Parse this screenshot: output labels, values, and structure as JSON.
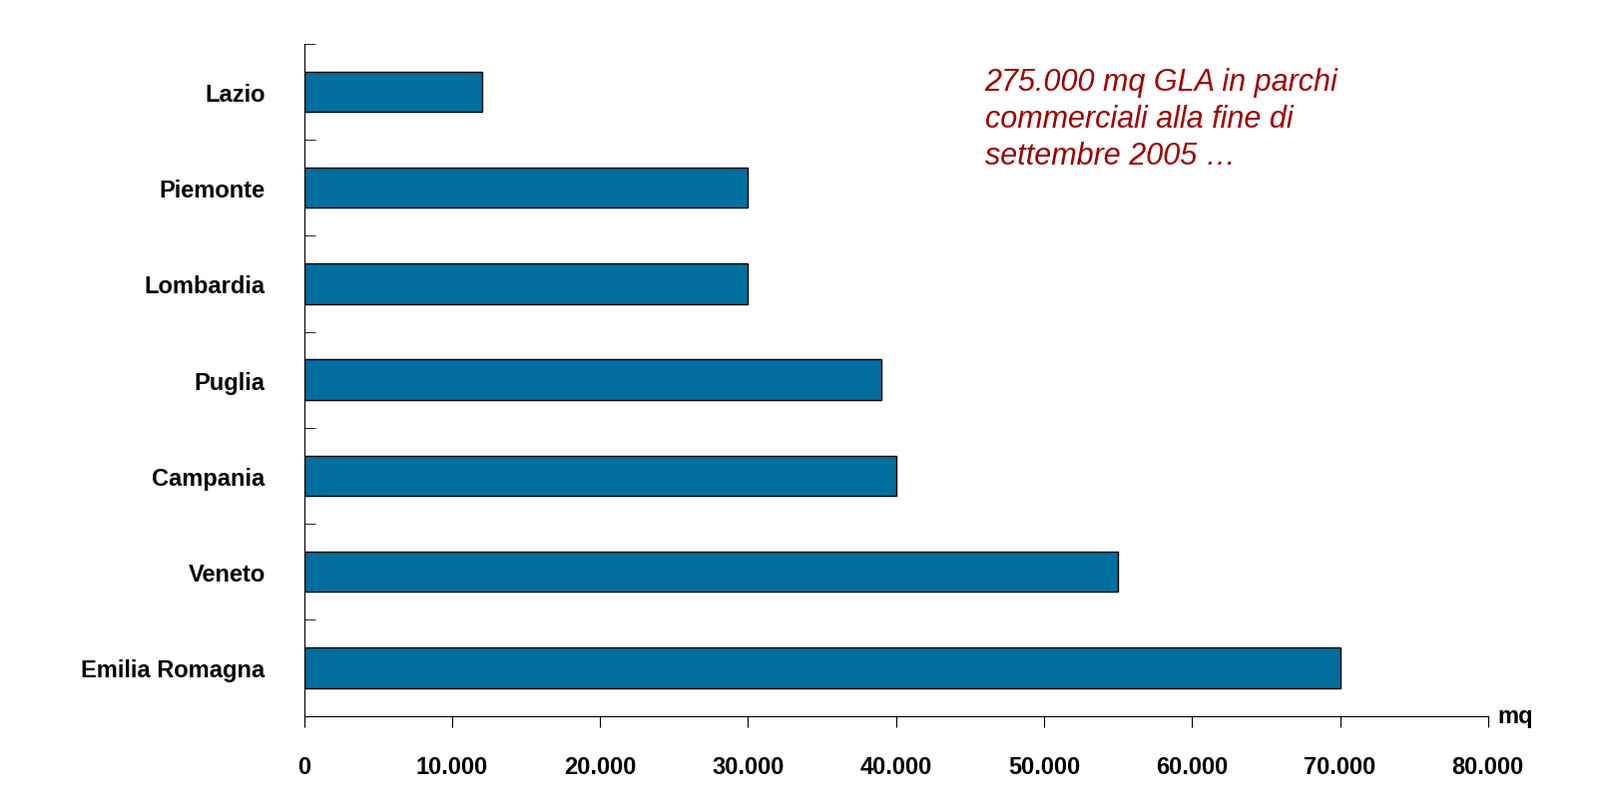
{
  "chart_data": {
    "type": "bar",
    "orientation": "horizontal",
    "categories": [
      "Lazio",
      "Piemonte",
      "Lombardia",
      "Puglia",
      "Campania",
      "Veneto",
      "Emilia Romagna"
    ],
    "values": [
      12000,
      30000,
      30000,
      39000,
      40000,
      55000,
      70000
    ],
    "color": "#006f9f",
    "xlabel": "mq",
    "annotation": "275.000 mq GLA in parchi\ncommerciali alla fine di\nsettembre 2005 …",
    "annotation_color": "#a00000",
    "xlim": [
      0,
      80000
    ],
    "xticks": [
      0,
      {
        "value": 10000,
        "label": "10.000"
      },
      {
        "value": 20000,
        "label": "20.000"
      },
      {
        "value": 30000,
        "label": "30.000"
      },
      {
        "value": 40000,
        "label": "40.000"
      },
      {
        "value": 50000,
        "label": "50.000"
      },
      {
        "value": 60000,
        "label": "60.000"
      },
      {
        "value": 70000,
        "label": "70.000"
      },
      {
        "value": 80000,
        "label": "80.000"
      }
    ],
    "grid": false
  }
}
